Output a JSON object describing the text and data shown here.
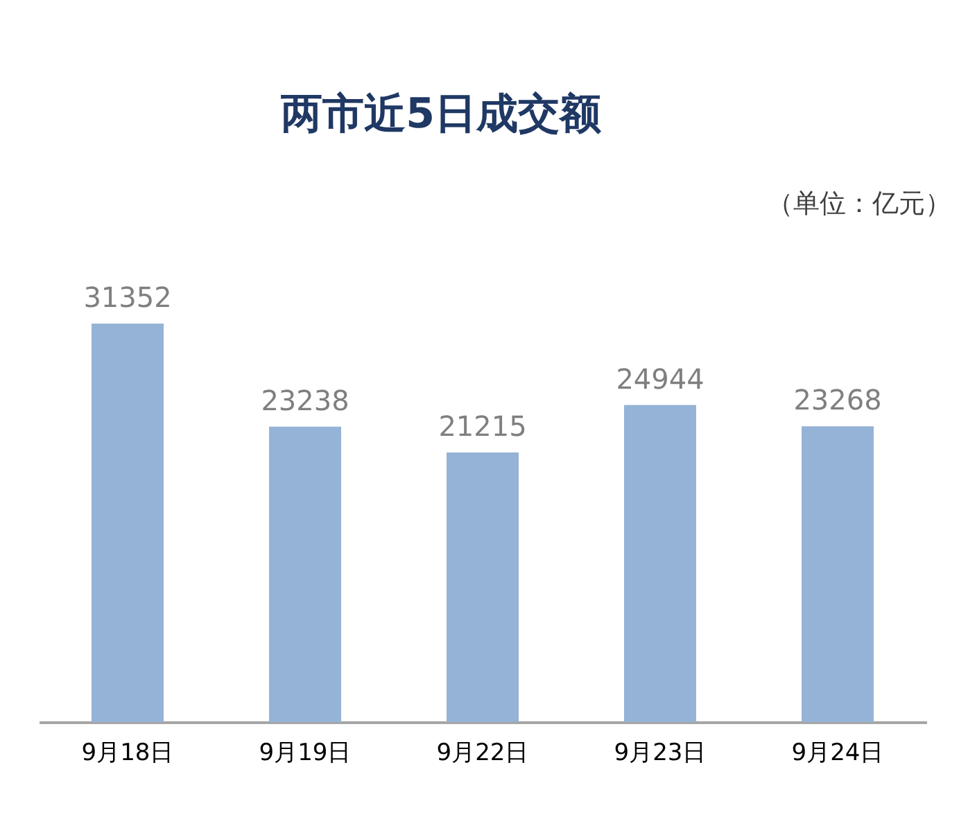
{
  "chart_data": {
    "type": "bar",
    "title": "两市近5日成交额",
    "annotations": [
      "（单位：亿元）"
    ],
    "categories": [
      "9月18日",
      "9月19日",
      "9月22日",
      "9月23日",
      "9月24日"
    ],
    "values": [
      31352,
      23238,
      21215,
      24944,
      23268
    ],
    "color": "#95b3d7",
    "data_labels": true,
    "grid": false
  }
}
